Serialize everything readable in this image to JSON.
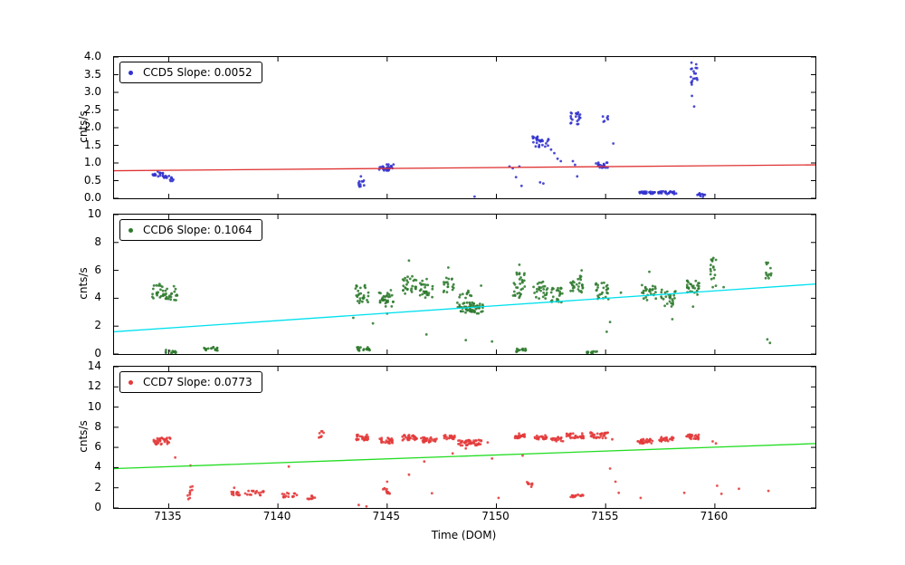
{
  "figure": {
    "xlabel": "Time (DOM)",
    "xlim": [
      7132.5,
      7164.6
    ],
    "xticks": [
      7135,
      7140,
      7145,
      7150,
      7155,
      7160
    ],
    "background": "#ffffff",
    "frame_color": "#000000"
  },
  "chart_data": [
    {
      "type": "scatter",
      "name": "CCD5",
      "legend_label": "CCD5 Slope: 0.0052",
      "slope": 0.0052,
      "ylabel": "cnts/s",
      "ylim": [
        0,
        4.0
      ],
      "yticks": [
        0.0,
        0.5,
        1.0,
        1.5,
        2.0,
        2.5,
        3.0,
        3.5,
        4.0
      ],
      "ytick_decimals": 1,
      "marker_color": "#3232cd",
      "line_color": "#e03232",
      "fit_line": {
        "x0": 7132.5,
        "y0": 0.78,
        "x1": 7164.6,
        "y1": 0.947
      },
      "clusters": [
        [
          7134.25,
          7134.75,
          0.62,
          0.78,
          16
        ],
        [
          7134.75,
          7135.25,
          0.48,
          0.65,
          14
        ],
        [
          7143.65,
          7144.0,
          0.33,
          0.58,
          10
        ],
        [
          7144.6,
          7145.3,
          0.76,
          0.96,
          26
        ],
        [
          7151.65,
          7152.45,
          1.45,
          1.75,
          30
        ],
        [
          7153.35,
          7153.85,
          2.1,
          2.45,
          20
        ],
        [
          7154.55,
          7155.1,
          0.85,
          1.02,
          18
        ],
        [
          7154.85,
          7155.2,
          2.15,
          2.35,
          6
        ],
        [
          7156.55,
          7157.3,
          0.12,
          0.2,
          24
        ],
        [
          7157.4,
          7158.25,
          0.12,
          0.2,
          26
        ],
        [
          7158.85,
          7159.2,
          3.2,
          3.9,
          18
        ],
        [
          7159.2,
          7159.55,
          0.02,
          0.15,
          12
        ]
      ],
      "singles": [
        [
          7143.8,
          0.62
        ],
        [
          7150.6,
          0.9
        ],
        [
          7150.75,
          0.85
        ],
        [
          7150.9,
          0.6
        ],
        [
          7151.05,
          0.9
        ],
        [
          7151.15,
          0.35
        ],
        [
          7152.5,
          1.38
        ],
        [
          7152.65,
          1.28
        ],
        [
          7152.8,
          1.12
        ],
        [
          7152.95,
          1.05
        ],
        [
          7153.5,
          1.05
        ],
        [
          7153.6,
          0.95
        ],
        [
          7153.7,
          0.62
        ],
        [
          7155.35,
          1.55
        ],
        [
          7158.95,
          2.9
        ],
        [
          7159.05,
          2.6
        ],
        [
          7149.0,
          0.05
        ],
        [
          7152.0,
          0.45
        ],
        [
          7152.15,
          0.42
        ]
      ]
    },
    {
      "type": "scatter",
      "name": "CCD6",
      "legend_label": "CCD6 Slope: 0.1064",
      "slope": 0.1064,
      "ylabel": "cnts/s",
      "ylim": [
        0,
        10
      ],
      "yticks": [
        0,
        2,
        4,
        6,
        8,
        10
      ],
      "ytick_decimals": 0,
      "marker_color": "#2d7a2d",
      "line_color": "#00e0ee",
      "fit_line": {
        "x0": 7132.5,
        "y0": 1.6,
        "x1": 7164.6,
        "y1": 5.02
      },
      "clusters": [
        [
          7134.25,
          7134.8,
          3.9,
          5.1,
          22
        ],
        [
          7134.8,
          7135.4,
          3.8,
          4.9,
          22
        ],
        [
          7134.85,
          7135.35,
          0.05,
          0.3,
          12
        ],
        [
          7136.6,
          7137.3,
          0.25,
          0.55,
          16
        ],
        [
          7143.55,
          7144.15,
          3.4,
          5.0,
          28
        ],
        [
          7143.6,
          7144.2,
          0.2,
          0.5,
          20
        ],
        [
          7144.6,
          7145.3,
          3.3,
          4.6,
          32
        ],
        [
          7145.7,
          7146.35,
          4.3,
          5.6,
          28
        ],
        [
          7146.5,
          7147.15,
          4.0,
          5.4,
          28
        ],
        [
          7147.55,
          7148.05,
          4.4,
          5.7,
          18
        ],
        [
          7148.2,
          7149.4,
          2.9,
          3.7,
          60
        ],
        [
          7148.3,
          7149.0,
          4.0,
          4.6,
          10
        ],
        [
          7150.75,
          7151.3,
          3.9,
          6.1,
          30
        ],
        [
          7150.9,
          7151.35,
          0.15,
          0.4,
          14
        ],
        [
          7151.7,
          7152.35,
          3.9,
          5.2,
          26
        ],
        [
          7152.5,
          7153.05,
          3.7,
          4.75,
          24
        ],
        [
          7153.35,
          7154.0,
          4.4,
          5.6,
          28
        ],
        [
          7154.15,
          7154.6,
          0.02,
          0.2,
          12
        ],
        [
          7154.5,
          7155.15,
          3.9,
          5.15,
          26
        ],
        [
          7156.65,
          7157.3,
          3.8,
          5.0,
          26
        ],
        [
          7157.5,
          7158.2,
          3.4,
          4.65,
          26
        ],
        [
          7158.7,
          7159.3,
          4.2,
          5.35,
          28
        ],
        [
          7159.8,
          7160.1,
          4.8,
          6.9,
          18
        ],
        [
          7162.3,
          7162.6,
          5.2,
          6.6,
          12
        ]
      ],
      "singles": [
        [
          7143.45,
          2.6
        ],
        [
          7144.35,
          2.2
        ],
        [
          7145.0,
          2.9
        ],
        [
          7146.0,
          6.7
        ],
        [
          7146.8,
          1.4
        ],
        [
          7147.8,
          6.2
        ],
        [
          7148.6,
          1.0
        ],
        [
          7149.8,
          0.9
        ],
        [
          7151.05,
          6.4
        ],
        [
          7153.9,
          6.0
        ],
        [
          7155.05,
          1.6
        ],
        [
          7155.2,
          2.3
        ],
        [
          7155.7,
          4.4
        ],
        [
          7157.0,
          5.9
        ],
        [
          7158.05,
          2.5
        ],
        [
          7159.0,
          3.4
        ],
        [
          7160.4,
          4.8
        ],
        [
          7162.4,
          1.05
        ],
        [
          7162.52,
          0.8
        ],
        [
          7149.3,
          4.9
        ]
      ]
    },
    {
      "type": "scatter",
      "name": "CCD7",
      "legend_label": "CCD7 Slope: 0.0773",
      "slope": 0.0773,
      "ylabel": "cnts/s",
      "ylim": [
        0,
        14
      ],
      "yticks": [
        0,
        2,
        4,
        6,
        8,
        10,
        12,
        14
      ],
      "ytick_decimals": 0,
      "marker_color": "#e43a3a",
      "line_color": "#22dd22",
      "fit_line": {
        "x0": 7132.5,
        "y0": 3.9,
        "x1": 7164.6,
        "y1": 6.38
      },
      "clusters": [
        [
          7134.3,
          7135.2,
          6.3,
          7.0,
          36
        ],
        [
          7135.85,
          7136.1,
          0.8,
          2.2,
          10
        ],
        [
          7137.85,
          7138.3,
          1.25,
          1.6,
          12
        ],
        [
          7138.5,
          7139.35,
          1.25,
          1.7,
          18
        ],
        [
          7140.2,
          7140.95,
          1.05,
          1.5,
          16
        ],
        [
          7141.35,
          7141.8,
          0.85,
          1.2,
          10
        ],
        [
          7141.8,
          7142.15,
          6.9,
          7.6,
          8
        ],
        [
          7143.55,
          7144.15,
          6.7,
          7.3,
          26
        ],
        [
          7144.65,
          7145.25,
          6.4,
          6.95,
          26
        ],
        [
          7144.8,
          7145.15,
          1.4,
          2.1,
          12
        ],
        [
          7145.7,
          7146.4,
          6.7,
          7.25,
          30
        ],
        [
          7146.55,
          7147.3,
          6.5,
          7.0,
          30
        ],
        [
          7147.6,
          7148.1,
          6.8,
          7.25,
          20
        ],
        [
          7148.25,
          7149.35,
          6.2,
          6.75,
          48
        ],
        [
          7150.75,
          7151.3,
          6.9,
          7.4,
          26
        ],
        [
          7151.35,
          7151.65,
          2.2,
          2.7,
          7
        ],
        [
          7151.75,
          7152.3,
          6.8,
          7.25,
          24
        ],
        [
          7152.5,
          7153.05,
          6.6,
          7.05,
          20
        ],
        [
          7153.2,
          7154.0,
          6.9,
          7.4,
          30
        ],
        [
          7153.35,
          7154.0,
          1.05,
          1.4,
          15
        ],
        [
          7154.3,
          7155.1,
          6.9,
          7.5,
          30
        ],
        [
          7156.4,
          7157.2,
          6.4,
          6.85,
          30
        ],
        [
          7157.45,
          7158.1,
          6.6,
          7.05,
          24
        ],
        [
          7158.7,
          7159.3,
          6.8,
          7.3,
          26
        ]
      ],
      "singles": [
        [
          7135.3,
          5.0
        ],
        [
          7136.0,
          4.2
        ],
        [
          7138.0,
          2.0
        ],
        [
          7140.5,
          4.1
        ],
        [
          7143.7,
          0.3
        ],
        [
          7144.05,
          0.15
        ],
        [
          7145.0,
          2.6
        ],
        [
          7146.0,
          3.3
        ],
        [
          7146.7,
          4.6
        ],
        [
          7147.05,
          1.45
        ],
        [
          7148.0,
          5.4
        ],
        [
          7148.6,
          5.9
        ],
        [
          7149.6,
          6.5
        ],
        [
          7149.8,
          4.9
        ],
        [
          7150.1,
          1.0
        ],
        [
          7151.2,
          5.2
        ],
        [
          7151.6,
          2.1
        ],
        [
          7155.2,
          3.9
        ],
        [
          7155.3,
          6.8
        ],
        [
          7155.45,
          2.6
        ],
        [
          7155.6,
          1.5
        ],
        [
          7156.6,
          1.0
        ],
        [
          7158.6,
          1.5
        ],
        [
          7159.9,
          6.6
        ],
        [
          7160.05,
          6.4
        ],
        [
          7160.1,
          2.2
        ],
        [
          7160.3,
          1.4
        ],
        [
          7161.1,
          1.9
        ],
        [
          7162.45,
          1.7
        ]
      ]
    }
  ]
}
